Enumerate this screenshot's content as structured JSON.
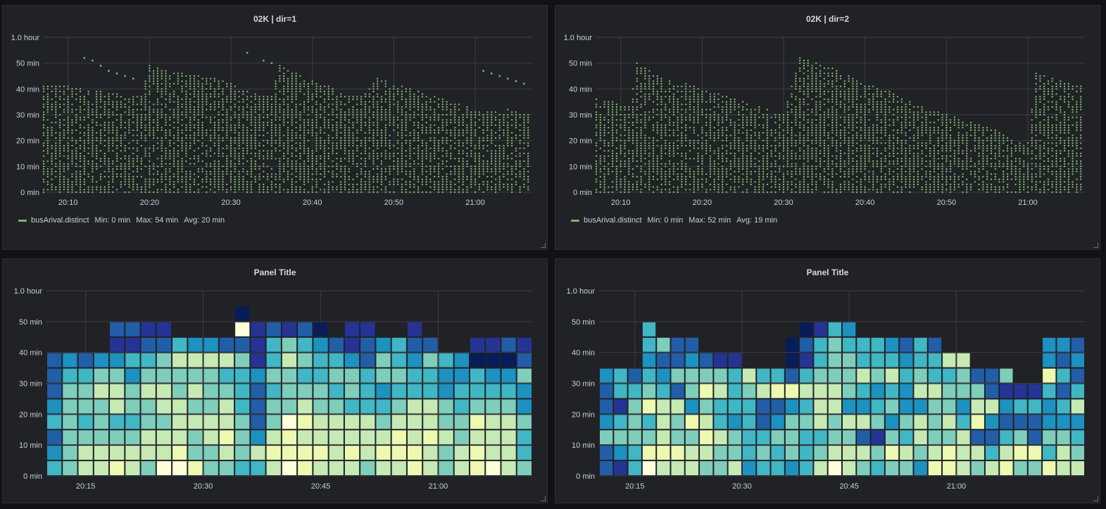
{
  "panels": [
    {
      "title": "02K | dir=1",
      "legend": {
        "series": "busArival.distinct",
        "min": "Min: 0 min",
        "max": "Max: 54 min",
        "avg": "Avg: 20 min"
      }
    },
    {
      "title": "02K | dir=2",
      "legend": {
        "series": "busArival.distinct",
        "min": "Min: 0 min",
        "max": "Max: 52 min",
        "avg": "Avg: 19 min"
      }
    },
    {
      "title": "Panel Title"
    },
    {
      "title": "Panel Title"
    }
  ],
  "colors": {
    "series_green": "#7eb26d",
    "heatmap_scale": [
      "#ffffd9",
      "#edf8b1",
      "#c7e9b4",
      "#7fcdbb",
      "#41b6c4",
      "#1d91c0",
      "#225ea8",
      "#253494",
      "#081d58"
    ]
  },
  "chart_data": [
    {
      "type": "scatter",
      "title": "02K | dir=1",
      "x_ticks": [
        "20:10",
        "20:20",
        "20:30",
        "20:40",
        "20:50",
        "21:00"
      ],
      "y_ticks": [
        "0 min",
        "10 min",
        "20 min",
        "30 min",
        "40 min",
        "50 min",
        "1.0 hour"
      ],
      "ylim": [
        0,
        60
      ],
      "xlim": [
        "20:07",
        "21:07"
      ],
      "series": [
        {
          "name": "busArival.distinct",
          "color": "#7eb26d",
          "envelope": [
            [
              "20:07",
              41
            ],
            [
              "20:10",
              41
            ],
            [
              "20:12",
              40
            ],
            [
              "20:14",
              39
            ],
            [
              "20:16",
              38
            ],
            [
              "20:18",
              37
            ],
            [
              "20:19",
              37
            ],
            [
              "20:20",
              49
            ],
            [
              "20:22",
              47
            ],
            [
              "20:24",
              46
            ],
            [
              "20:26",
              45
            ],
            [
              "20:28",
              44
            ],
            [
              "20:30",
              42
            ],
            [
              "20:31",
              40
            ],
            [
              "20:33",
              38
            ],
            [
              "20:35",
              37
            ],
            [
              "20:36",
              49
            ],
            [
              "20:38",
              46
            ],
            [
              "20:40",
              43
            ],
            [
              "20:42",
              41
            ],
            [
              "20:44",
              38
            ],
            [
              "20:46",
              37
            ],
            [
              "20:48",
              44
            ],
            [
              "20:50",
              42
            ],
            [
              "20:52",
              40
            ],
            [
              "20:54",
              38
            ],
            [
              "20:56",
              36
            ],
            [
              "20:58",
              34
            ],
            [
              "21:00",
              32
            ],
            [
              "21:02",
              31
            ],
            [
              "21:04",
              32
            ],
            [
              "21:06",
              30
            ]
          ],
          "outliers": [
            [
              "20:12",
              52
            ],
            [
              "20:13",
              51
            ],
            [
              "20:14",
              49
            ],
            [
              "20:15",
              47
            ],
            [
              "20:16",
              46
            ],
            [
              "20:17",
              45
            ],
            [
              "20:18",
              44
            ],
            [
              "20:32",
              54
            ],
            [
              "20:34",
              51
            ],
            [
              "20:35",
              50
            ],
            [
              "21:01",
              47
            ],
            [
              "21:02",
              46
            ],
            [
              "21:03",
              45
            ],
            [
              "21:04",
              44
            ],
            [
              "21:05",
              43
            ],
            [
              "21:06",
              42
            ]
          ]
        }
      ]
    },
    {
      "type": "scatter",
      "title": "02K | dir=2",
      "x_ticks": [
        "20:10",
        "20:20",
        "20:30",
        "20:40",
        "20:50",
        "21:00"
      ],
      "y_ticks": [
        "0 min",
        "10 min",
        "20 min",
        "30 min",
        "40 min",
        "50 min",
        "1.0 hour"
      ],
      "ylim": [
        0,
        60
      ],
      "xlim": [
        "20:07",
        "21:07"
      ],
      "series": [
        {
          "name": "busArival.distinct",
          "color": "#7eb26d",
          "envelope": [
            [
              "20:07",
              36
            ],
            [
              "20:09",
              35
            ],
            [
              "20:11",
              33
            ],
            [
              "20:12",
              50
            ],
            [
              "20:14",
              46
            ],
            [
              "20:16",
              43
            ],
            [
              "20:18",
              42
            ],
            [
              "20:20",
              40
            ],
            [
              "20:22",
              38
            ],
            [
              "20:24",
              36
            ],
            [
              "20:26",
              34
            ],
            [
              "20:28",
              32
            ],
            [
              "20:30",
              30
            ],
            [
              "20:32",
              52
            ],
            [
              "20:34",
              50
            ],
            [
              "20:36",
              48
            ],
            [
              "20:38",
              45
            ],
            [
              "20:40",
              42
            ],
            [
              "20:42",
              40
            ],
            [
              "20:44",
              38
            ],
            [
              "20:46",
              35
            ],
            [
              "20:48",
              32
            ],
            [
              "20:50",
              30
            ],
            [
              "20:52",
              28
            ],
            [
              "20:54",
              26
            ],
            [
              "20:56",
              24
            ],
            [
              "20:58",
              20
            ],
            [
              "21:00",
              19
            ],
            [
              "21:01",
              46
            ],
            [
              "21:03",
              44
            ],
            [
              "21:05",
              42
            ],
            [
              "21:06",
              41
            ]
          ],
          "outliers": []
        }
      ]
    },
    {
      "type": "heatmap",
      "title": "Panel Title",
      "x_ticks": [
        "20:15",
        "20:30",
        "20:45",
        "21:00"
      ],
      "y_ticks": [
        "0 min",
        "10 min",
        "20 min",
        "30 min",
        "40 min",
        "50 min",
        "1.0 hour"
      ],
      "ylim": [
        0,
        60
      ],
      "bucket_minutes": 5,
      "x_start": "20:10",
      "column_minutes": 2,
      "columns": [
        [
          4,
          5,
          6,
          4,
          5,
          6,
          6,
          6
        ],
        [
          3,
          3,
          3,
          3,
          3,
          3,
          4,
          5
        ],
        [
          2,
          2,
          3,
          4,
          3,
          3,
          4,
          6
        ],
        [
          2,
          2,
          3,
          3,
          3,
          2,
          3,
          5
        ],
        [
          1,
          2,
          3,
          4,
          2,
          2,
          3,
          5,
          7,
          6
        ],
        [
          2,
          2,
          3,
          4,
          3,
          3,
          5,
          4,
          7,
          6
        ],
        [
          3,
          2,
          2,
          3,
          3,
          2,
          3,
          4,
          6,
          7
        ],
        [
          0,
          2,
          2,
          3,
          2,
          2,
          3,
          3,
          6,
          7
        ],
        [
          0,
          1,
          2,
          2,
          2,
          3,
          3,
          2,
          4
        ],
        [
          1,
          3,
          3,
          2,
          3,
          2,
          3,
          2,
          5
        ],
        [
          3,
          3,
          2,
          2,
          3,
          3,
          3,
          2,
          5
        ],
        [
          3,
          2,
          1,
          2,
          2,
          3,
          4,
          2,
          6
        ],
        [
          4,
          3,
          3,
          3,
          4,
          4,
          4,
          3,
          6,
          0,
          8
        ],
        [
          4,
          2,
          5,
          6,
          6,
          6,
          5,
          7,
          7,
          7
        ],
        [
          2,
          1,
          2,
          3,
          3,
          4,
          3,
          4,
          4,
          6
        ],
        [
          0,
          1,
          1,
          0,
          3,
          3,
          3,
          2,
          3,
          7
        ],
        [
          1,
          1,
          2,
          1,
          2,
          3,
          4,
          3,
          4,
          6
        ],
        [
          2,
          1,
          2,
          2,
          3,
          3,
          4,
          4,
          5,
          8
        ],
        [
          2,
          2,
          2,
          2,
          3,
          4,
          3,
          4,
          6
        ],
        [
          2,
          1,
          2,
          2,
          4,
          3,
          3,
          5,
          7,
          7
        ],
        [
          3,
          2,
          2,
          2,
          4,
          4,
          4,
          6,
          6,
          7
        ],
        [
          2,
          1,
          2,
          3,
          4,
          5,
          3,
          3,
          5
        ],
        [
          2,
          1,
          1,
          2,
          3,
          4,
          3,
          4,
          4
        ],
        [
          1,
          1,
          2,
          2,
          2,
          4,
          4,
          5,
          6,
          7
        ],
        [
          2,
          2,
          1,
          2,
          2,
          4,
          4,
          3,
          6
        ],
        [
          3,
          3,
          2,
          3,
          3,
          5,
          5,
          4
        ],
        [
          2,
          2,
          3,
          3,
          4,
          4,
          5,
          5
        ],
        [
          1,
          1,
          2,
          1,
          3,
          4,
          4,
          8,
          7
        ],
        [
          0,
          2,
          2,
          2,
          3,
          4,
          5,
          8,
          7
        ],
        [
          2,
          2,
          2,
          2,
          3,
          4,
          5,
          8,
          6
        ],
        [
          3,
          4,
          4,
          3,
          5,
          5,
          3,
          6,
          7
        ]
      ]
    },
    {
      "type": "heatmap",
      "title": "Panel Title",
      "x_ticks": [
        "20:15",
        "20:30",
        "20:45",
        "21:00"
      ],
      "y_ticks": [
        "0 min",
        "10 min",
        "20 min",
        "30 min",
        "40 min",
        "50 min",
        "1.0 hour"
      ],
      "ylim": [
        0,
        60
      ],
      "bucket_minutes": 5,
      "x_start": "20:10",
      "column_minutes": 2,
      "columns": [
        [
          6,
          6,
          3,
          5,
          6,
          6,
          5
        ],
        [
          7,
          5,
          3,
          4,
          7,
          4,
          4
        ],
        [
          4,
          4,
          3,
          3,
          3,
          4,
          6
        ],
        [
          0,
          1,
          3,
          4,
          1,
          3,
          4,
          5,
          4,
          4
        ],
        [
          2,
          1,
          2,
          2,
          2,
          4,
          5,
          6,
          3
        ],
        [
          2,
          1,
          3,
          3,
          2,
          6,
          3,
          6,
          6
        ],
        [
          2,
          2,
          3,
          1,
          5,
          3,
          3,
          5,
          6
        ],
        [
          3,
          2,
          1,
          2,
          3,
          1,
          3,
          6
        ],
        [
          3,
          3,
          2,
          4,
          4,
          2,
          3,
          7
        ],
        [
          2,
          3,
          3,
          5,
          4,
          4,
          4,
          7
        ],
        [
          5,
          4,
          4,
          4,
          4,
          3,
          2
        ],
        [
          4,
          3,
          4,
          6,
          6,
          2,
          4
        ],
        [
          4,
          4,
          3,
          5,
          6,
          1,
          4
        ],
        [
          5,
          3,
          3,
          3,
          5,
          1,
          6,
          8,
          8
        ],
        [
          4,
          4,
          4,
          3,
          4,
          2,
          4,
          7,
          6,
          8
        ],
        [
          2,
          3,
          4,
          2,
          2,
          2,
          3,
          4,
          4,
          7
        ],
        [
          0,
          2,
          3,
          3,
          2,
          2,
          3,
          3,
          3,
          4
        ],
        [
          2,
          2,
          3,
          2,
          5,
          3,
          3,
          3,
          4,
          5
        ],
        [
          3,
          2,
          6,
          2,
          5,
          4,
          2,
          4,
          4
        ],
        [
          4,
          3,
          7,
          3,
          4,
          5,
          3,
          4,
          4
        ],
        [
          3,
          1,
          3,
          5,
          3,
          4,
          2,
          4,
          5
        ],
        [
          3,
          2,
          4,
          3,
          5,
          5,
          4,
          5,
          6
        ],
        [
          5,
          3,
          2,
          2,
          5,
          2,
          3,
          4,
          4
        ],
        [
          1,
          2,
          3,
          3,
          3,
          2,
          4,
          4,
          6
        ],
        [
          1,
          1,
          3,
          2,
          3,
          3,
          4,
          2
        ],
        [
          2,
          2,
          2,
          4,
          5,
          3,
          3,
          2
        ],
        [
          3,
          2,
          6,
          1,
          2,
          3,
          6
        ],
        [
          2,
          4,
          6,
          5,
          2,
          6,
          6
        ],
        [
          1,
          2,
          4,
          6,
          5,
          7,
          3
        ],
        [
          3,
          1,
          3,
          6,
          4,
          7
        ],
        [
          3,
          1,
          6,
          6,
          4,
          7
        ],
        [
          1,
          4,
          3,
          5,
          5,
          4,
          1,
          5,
          5
        ],
        [
          2,
          2,
          3,
          5,
          4,
          6,
          4,
          6,
          5
        ],
        [
          2,
          3,
          4,
          5,
          2,
          4,
          6,
          5,
          6
        ]
      ]
    }
  ]
}
